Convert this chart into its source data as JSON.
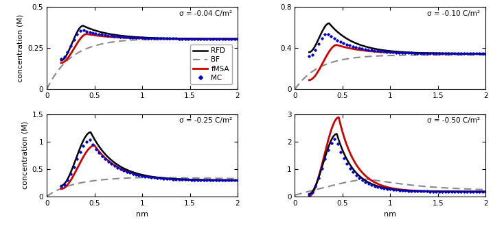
{
  "panels": [
    {
      "sigma_label": "σ = -0.04 C/m²",
      "ylim": [
        0,
        0.5
      ],
      "yticks": [
        0,
        0.25,
        0.5
      ],
      "show_legend": true,
      "row": 0,
      "col": 0
    },
    {
      "sigma_label": "σ = -0.10 C/m²",
      "ylim": [
        0,
        0.8
      ],
      "yticks": [
        0,
        0.4,
        0.8
      ],
      "show_legend": false,
      "row": 0,
      "col": 1
    },
    {
      "sigma_label": "σ = -0.25 C/m²",
      "ylim": [
        0,
        1.5
      ],
      "yticks": [
        0,
        0.5,
        1.0,
        1.5
      ],
      "show_legend": false,
      "row": 1,
      "col": 0
    },
    {
      "sigma_label": "σ = -0.50 C/m²",
      "ylim": [
        0,
        3
      ],
      "yticks": [
        0,
        1,
        2,
        3
      ],
      "show_legend": false,
      "row": 1,
      "col": 1
    }
  ],
  "xlim": [
    0,
    2
  ],
  "xticks": [
    0,
    0.5,
    1.0,
    1.5,
    2.0
  ],
  "xlabel": "nm",
  "ylabel": "concentration (M)",
  "colors": {
    "RFD": "#000000",
    "BF": "#888888",
    "fMSA": "#cc0000",
    "MC": "#0000cc"
  },
  "curves": {
    "panel0": {
      "RFD": {
        "x0": 0.15,
        "peak_x": 0.38,
        "peak_y": 0.385,
        "start_y": 0.175,
        "end_y": 0.305,
        "decay": 3.5
      },
      "BF": {
        "x0": 0.0,
        "peak_x": 0.9,
        "peak_y": 0.308,
        "start_y": 0.0,
        "end_y": 0.3,
        "decay": 1.2
      },
      "fMSA": {
        "x0": 0.15,
        "peak_x": 0.42,
        "peak_y": 0.335,
        "start_y": 0.16,
        "end_y": 0.305,
        "decay": 3.5
      },
      "MC": {
        "x0": 0.15,
        "peak_x": 0.37,
        "peak_y": 0.36,
        "start_y": 0.185,
        "end_y": 0.305,
        "decay": 3.5
      }
    },
    "panel1": {
      "RFD": {
        "x0": 0.15,
        "peak_x": 0.36,
        "peak_y": 0.64,
        "start_y": 0.36,
        "end_y": 0.345,
        "decay": 3.8
      },
      "BF": {
        "x0": 0.0,
        "peak_x": 1.1,
        "peak_y": 0.335,
        "start_y": 0.0,
        "end_y": 0.33,
        "decay": 0.8
      },
      "fMSA": {
        "x0": 0.15,
        "peak_x": 0.44,
        "peak_y": 0.43,
        "start_y": 0.09,
        "end_y": 0.345,
        "decay": 3.5
      },
      "MC": {
        "x0": 0.15,
        "peak_x": 0.34,
        "peak_y": 0.54,
        "start_y": 0.32,
        "end_y": 0.345,
        "decay": 3.8
      }
    },
    "panel2": {
      "RFD": {
        "x0": 0.15,
        "peak_x": 0.46,
        "peak_y": 1.17,
        "start_y": 0.2,
        "end_y": 0.295,
        "decay": 4.0
      },
      "BF": {
        "x0": 0.0,
        "peak_x": 1.0,
        "peak_y": 0.36,
        "start_y": 0.0,
        "end_y": 0.31,
        "decay": 1.0
      },
      "fMSA": {
        "x0": 0.15,
        "peak_x": 0.5,
        "peak_y": 0.93,
        "start_y": 0.14,
        "end_y": 0.295,
        "decay": 4.0
      },
      "MC": {
        "x0": 0.15,
        "peak_x": 0.45,
        "peak_y": 1.03,
        "start_y": 0.19,
        "end_y": 0.295,
        "decay": 4.0
      }
    },
    "panel3": {
      "RFD": {
        "x0": 0.15,
        "peak_x": 0.44,
        "peak_y": 2.28,
        "start_y": 0.1,
        "end_y": 0.18,
        "decay": 5.5
      },
      "BF": {
        "x0": 0.0,
        "peak_x": 0.75,
        "peak_y": 0.72,
        "start_y": 0.0,
        "end_y": 0.2,
        "decay": 1.8
      },
      "fMSA": {
        "x0": 0.15,
        "peak_x": 0.46,
        "peak_y": 2.88,
        "start_y": 0.02,
        "end_y": 0.18,
        "decay": 5.5
      },
      "MC": {
        "x0": 0.15,
        "peak_x": 0.43,
        "peak_y": 2.1,
        "start_y": 0.08,
        "end_y": 0.18,
        "decay": 5.5
      }
    }
  }
}
